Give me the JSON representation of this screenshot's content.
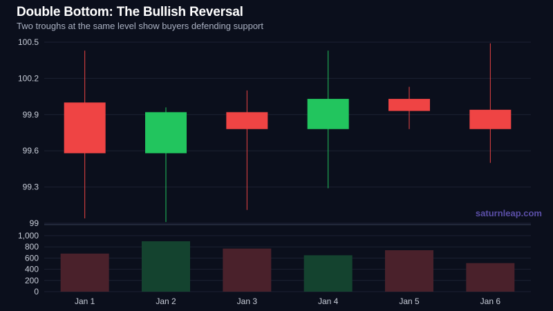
{
  "header": {
    "title": "Double Bottom: The Bullish Reversal",
    "subtitle": "Two troughs at the same level show buyers defending support"
  },
  "watermark": "saturnleap.com",
  "colors": {
    "background": "#0b0f1c",
    "up": "#22c55e",
    "down": "#ef4444",
    "volume_up": "#14432f",
    "volume_down": "#4a212b",
    "grid": "#1c2233",
    "watermark": "#5b4fa8"
  },
  "chart_data": [
    {
      "type": "candlestick",
      "title": "Double Bottom: The Bullish Reversal",
      "categories": [
        "Jan 1",
        "Jan 2",
        "Jan 3",
        "Jan 4",
        "Jan 5",
        "Jan 6"
      ],
      "ohlc": [
        {
          "open": 100.0,
          "high": 100.43,
          "low": 99.04,
          "close": 99.58
        },
        {
          "open": 99.58,
          "high": 99.96,
          "low": 99.01,
          "close": 99.92
        },
        {
          "open": 99.92,
          "high": 100.1,
          "low": 99.11,
          "close": 99.78
        },
        {
          "open": 99.78,
          "high": 100.43,
          "low": 99.29,
          "close": 100.03
        },
        {
          "open": 100.03,
          "high": 100.13,
          "low": 99.78,
          "close": 99.93
        },
        {
          "open": 99.94,
          "high": 100.49,
          "low": 99.5,
          "close": 99.78
        }
      ],
      "yticks": [
        "100.5",
        "100.2",
        "99.9",
        "99.6",
        "99.3",
        "99"
      ],
      "ylim": [
        99,
        100.5
      ],
      "grid": true
    },
    {
      "type": "bar",
      "series": [
        {
          "values": [
            680,
            900,
            770,
            650,
            740,
            510
          ]
        }
      ],
      "categories": [
        "Jan 1",
        "Jan 2",
        "Jan 3",
        "Jan 4",
        "Jan 5",
        "Jan 6"
      ],
      "yticks": [
        "1,000",
        "800",
        "600",
        "400",
        "200",
        "0"
      ],
      "ylim": [
        0,
        1000
      ],
      "grid": true
    }
  ]
}
